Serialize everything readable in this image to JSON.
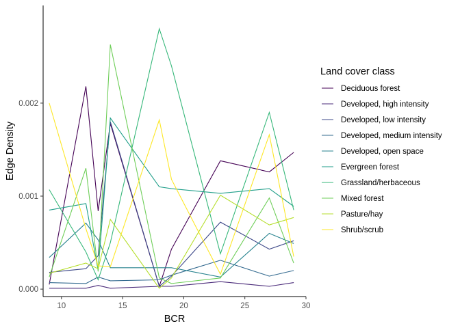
{
  "chart_data": {
    "type": "line",
    "xlabel": "BCR",
    "ylabel": "Edge Density",
    "xlim": [
      8.5,
      30
    ],
    "ylim": [
      -8e-05,
      0.00305
    ],
    "x_ticks": [
      10,
      15,
      20,
      25,
      30
    ],
    "x_tick_labels": [
      "10",
      "15",
      "20",
      "25",
      "30"
    ],
    "y_ticks": [
      0,
      0.001,
      0.002
    ],
    "y_tick_labels": [
      "0.000",
      "0.001",
      "0.002"
    ],
    "grid": false,
    "legend_title": "Land cover class",
    "legend_position": "right",
    "x": [
      9,
      12,
      13,
      14,
      18,
      19,
      23,
      27,
      29
    ],
    "series": [
      {
        "name": "Deciduous forest",
        "color": "#440154",
        "values": [
          5e-05,
          0.00218,
          0.00084,
          0.00178,
          3e-05,
          0.00043,
          0.00138,
          0.00126,
          0.00147
        ]
      },
      {
        "name": "Developed, high intensity",
        "color": "#482878",
        "values": [
          1e-05,
          1e-05,
          4e-05,
          1e-05,
          3e-05,
          3e-05,
          8e-05,
          3e-05,
          7e-05
        ]
      },
      {
        "name": "Developed, low intensity",
        "color": "#3e4989",
        "values": [
          0.00018,
          0.00022,
          0.00036,
          0.0018,
          3e-05,
          0.00014,
          0.00072,
          0.00043,
          0.00052
        ]
      },
      {
        "name": "Developed, medium intensity",
        "color": "#31688e",
        "values": [
          7e-05,
          6e-05,
          0.00013,
          9e-05,
          0.0001,
          0.00015,
          0.00031,
          0.00014,
          0.0002
        ]
      },
      {
        "name": "Developed, open space",
        "color": "#26828e",
        "values": [
          0.00034,
          0.00071,
          0.00053,
          0.00023,
          0.00023,
          0.00023,
          0.00013,
          0.0006,
          0.00049
        ]
      },
      {
        "name": "Evergreen forest",
        "color": "#1f9e89",
        "values": [
          0.00085,
          0.00092,
          0.0002,
          0.00184,
          0.0011,
          0.00108,
          0.00103,
          0.00108,
          0.00089
        ]
      },
      {
        "name": "Grassland/herbaceous",
        "color": "#35b779",
        "values": [
          0.00107,
          0.0004,
          0.0001,
          0.0005,
          0.0028,
          0.0024,
          0.00038,
          0.0019,
          0.00085
        ]
      },
      {
        "name": "Mixed forest",
        "color": "#6ece58",
        "values": [
          0.00013,
          0.0013,
          0.00019,
          0.00263,
          0.00012,
          6e-05,
          0.00012,
          0.00098,
          0.00028
        ]
      },
      {
        "name": "Pasture/hay",
        "color": "#b5de2b",
        "values": [
          0.00017,
          0.00028,
          0.00022,
          0.00075,
          1e-05,
          0.00012,
          0.00101,
          0.00069,
          0.00077
        ]
      },
      {
        "name": "Shrub/scrub",
        "color": "#fde725",
        "values": [
          0.002,
          0.00065,
          0.00025,
          0.00024,
          0.00182,
          0.00118,
          0.00016,
          0.00166,
          0.00035
        ]
      }
    ]
  }
}
